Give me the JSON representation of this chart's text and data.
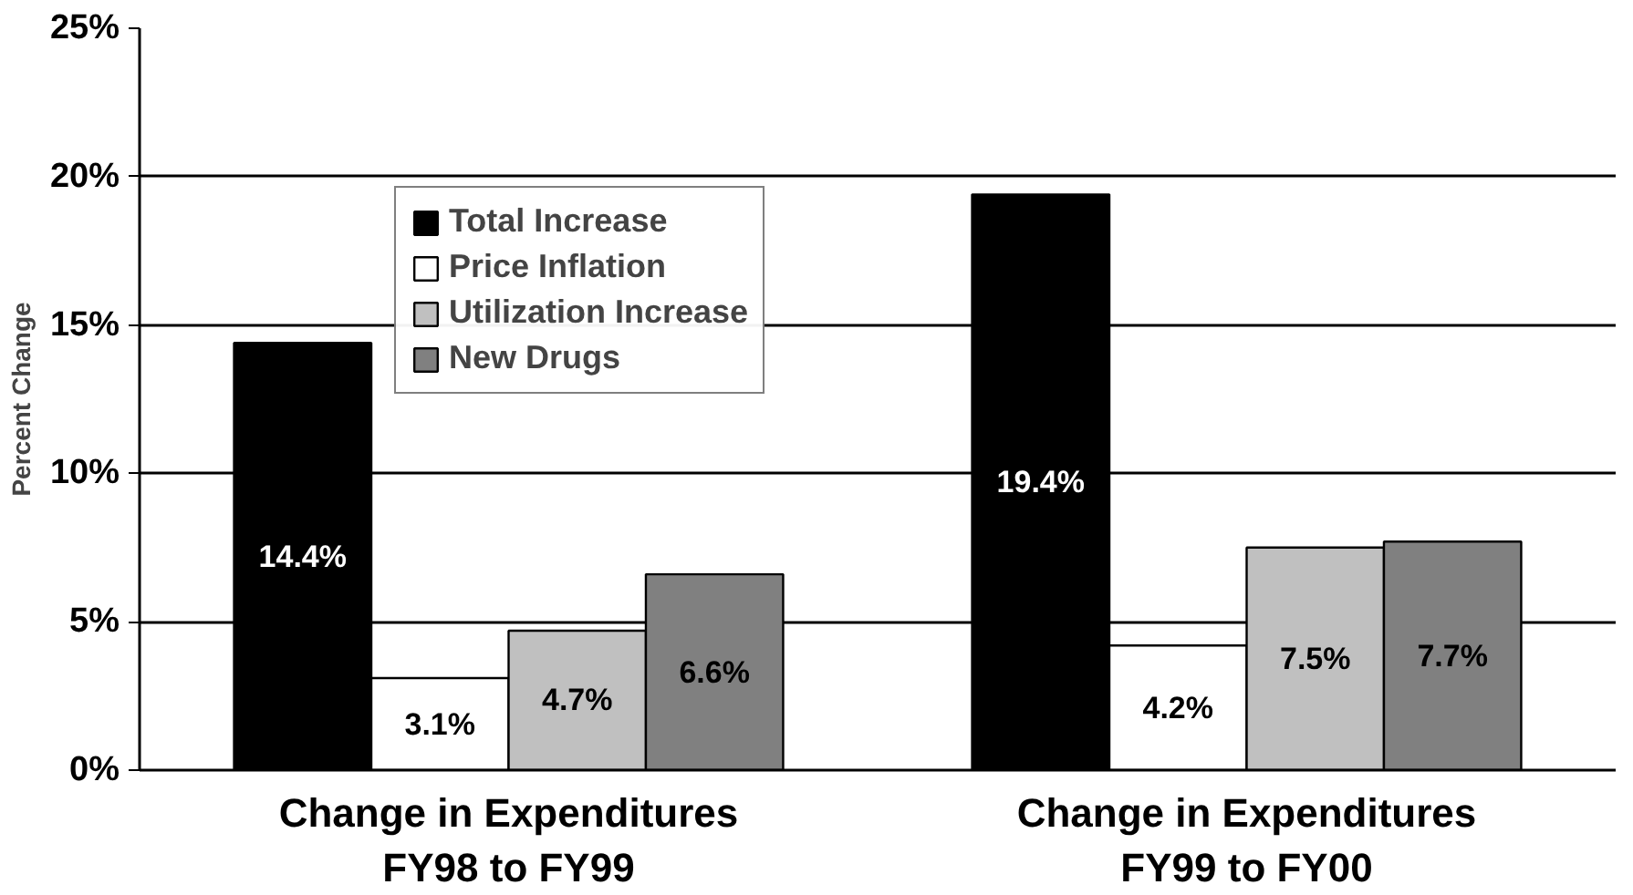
{
  "chart_data": {
    "type": "bar",
    "ylabel": "Percent Change",
    "categories": [
      "Change in Expenditures\nFY98 to FY99",
      "Change in Expenditures\nFY99 to FY00"
    ],
    "series": [
      {
        "name": "Total Increase",
        "color": "#000000",
        "values": [
          14.4,
          19.4
        ],
        "value_labels": [
          "14.4%",
          "19.4%"
        ]
      },
      {
        "name": "Price Inflation",
        "color": "#ffffff",
        "values": [
          3.1,
          4.2
        ],
        "value_labels": [
          "3.1%",
          "4.2%"
        ]
      },
      {
        "name": "Utilization Increase",
        "color": "#c0c0c0",
        "values": [
          4.7,
          7.5
        ],
        "value_labels": [
          "4.7%",
          "7.5%"
        ]
      },
      {
        "name": "New Drugs",
        "color": "#808080",
        "values": [
          6.6,
          7.7
        ],
        "value_labels": [
          "6.6%",
          "7.7%"
        ]
      }
    ],
    "ylim": [
      0,
      25
    ],
    "yticks": [
      {
        "value": 0,
        "label": "0%"
      },
      {
        "value": 5,
        "label": "5%"
      },
      {
        "value": 10,
        "label": "10%"
      },
      {
        "value": 15,
        "label": "15%"
      },
      {
        "value": 20,
        "label": "20%"
      },
      {
        "value": 25,
        "label": "25%"
      }
    ],
    "grid": "y",
    "legend": "top left"
  }
}
